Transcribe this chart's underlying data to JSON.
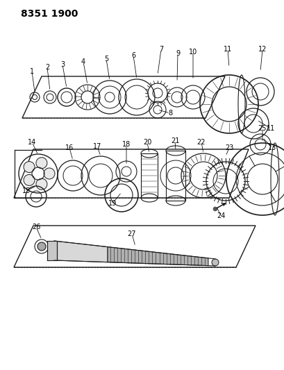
{
  "title": "8351 1900",
  "bg_color": "#ffffff",
  "line_color": "#1a1a1a",
  "fig_width": 4.1,
  "fig_height": 5.33,
  "dpi": 100
}
